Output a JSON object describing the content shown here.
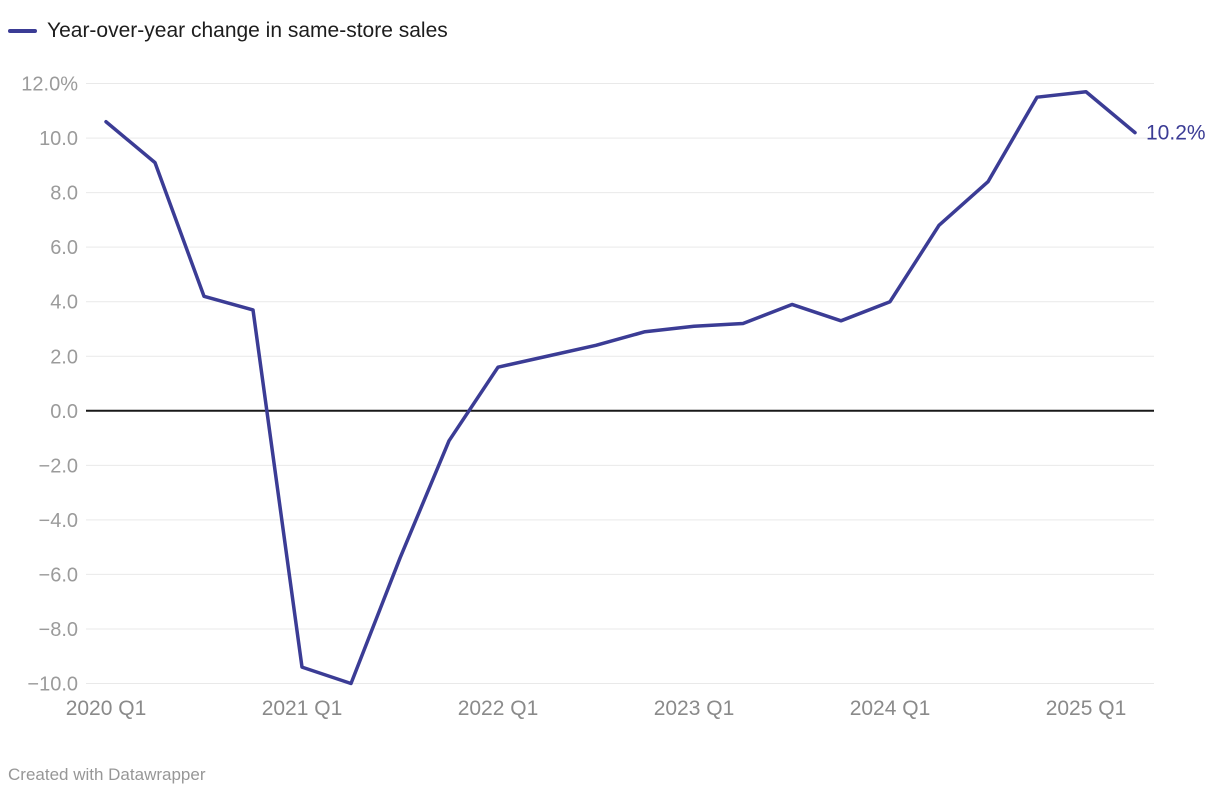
{
  "legend": {
    "label": "Year-over-year change in same-store sales"
  },
  "footer": {
    "attribution": "Created with Datawrapper"
  },
  "colors": {
    "accent": "#3b3c95",
    "grid": "#e9e9e9",
    "zero_line": "#191919",
    "y_tick_text": "#9b9b9b",
    "x_tick_text": "#8a8a8a",
    "legend_text": "#1d1d1d",
    "footer_text": "#979797"
  },
  "chart_data": {
    "type": "line",
    "title": "Year-over-year change in same-store sales",
    "legend_position": "top-left",
    "grid": "horizontal",
    "unit": "%",
    "ylim": [
      -10,
      12
    ],
    "xlabel": "",
    "ylabel": "",
    "categories": [
      "2020 Q1",
      "2020 Q2",
      "2020 Q3",
      "2020 Q4",
      "2021 Q1",
      "2021 Q2",
      "2021 Q3",
      "2021 Q4",
      "2022 Q1",
      "2022 Q2",
      "2022 Q3",
      "2022 Q4",
      "2023 Q1",
      "2023 Q2",
      "2023 Q3",
      "2023 Q4",
      "2024 Q1",
      "2024 Q2",
      "2024 Q3",
      "2024 Q4",
      "2025 Q1",
      "2025 Q2"
    ],
    "series": [
      {
        "name": "Year-over-year change in same-store sales",
        "values": [
          10.6,
          9.1,
          4.2,
          3.7,
          -9.4,
          -10.0,
          -5.4,
          -1.1,
          1.6,
          2.0,
          2.4,
          2.9,
          3.1,
          3.2,
          3.9,
          3.3,
          4.0,
          6.8,
          8.4,
          11.5,
          11.7,
          10.2
        ]
      }
    ],
    "end_label": "10.2%",
    "y_ticks": [
      {
        "value": 12,
        "label": "12.0%"
      },
      {
        "value": 10,
        "label": "10.0"
      },
      {
        "value": 8,
        "label": "8.0"
      },
      {
        "value": 6,
        "label": "6.0"
      },
      {
        "value": 4,
        "label": "4.0"
      },
      {
        "value": 2,
        "label": "2.0"
      },
      {
        "value": 0,
        "label": "0.0"
      },
      {
        "value": -2,
        "label": "−2.0"
      },
      {
        "value": -4,
        "label": "−4.0"
      },
      {
        "value": -6,
        "label": "−6.0"
      },
      {
        "value": -8,
        "label": "−8.0"
      },
      {
        "value": -10,
        "label": "−10.0"
      }
    ],
    "x_ticks": [
      {
        "index": 0,
        "label": "2020 Q1"
      },
      {
        "index": 4,
        "label": "2021 Q1"
      },
      {
        "index": 8,
        "label": "2022 Q1"
      },
      {
        "index": 12,
        "label": "2023 Q1"
      },
      {
        "index": 16,
        "label": "2024 Q1"
      },
      {
        "index": 20,
        "label": "2025 Q1"
      }
    ]
  }
}
